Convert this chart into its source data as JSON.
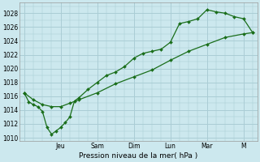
{
  "xlabel": "Pression niveau de la mer( hPa )",
  "ylim": [
    1009.5,
    1029.5
  ],
  "yticks": [
    1010,
    1012,
    1014,
    1016,
    1018,
    1020,
    1022,
    1024,
    1026,
    1028
  ],
  "bg_color": "#cce8ee",
  "grid_color": "#aacdd5",
  "line_color": "#1a6e1a",
  "day_positions": [
    0,
    4,
    8,
    12,
    16,
    20,
    24
  ],
  "day_labels": [
    "",
    "Jeu",
    "Sam",
    "Dim",
    "Lun",
    "Mar",
    "M"
  ],
  "xlim": [
    -0.5,
    25.5
  ],
  "line1_x": [
    0,
    0.5,
    1,
    1.5,
    2,
    2.5,
    3,
    3.5,
    4,
    4.5,
    5,
    5.5,
    6,
    7,
    8,
    9,
    10,
    11,
    12,
    13,
    14,
    15,
    16,
    17,
    18,
    19,
    20,
    21,
    22,
    23,
    24,
    25
  ],
  "line1_y": [
    1016.5,
    1015.2,
    1014.8,
    1014.5,
    1013.8,
    1011.5,
    1010.5,
    1011.0,
    1011.5,
    1012.2,
    1013.0,
    1015.3,
    1015.8,
    1017.0,
    1018.0,
    1019.0,
    1019.5,
    1020.3,
    1021.5,
    1022.2,
    1022.5,
    1022.8,
    1023.8,
    1026.5,
    1026.8,
    1027.2,
    1028.5,
    1028.2,
    1028.0,
    1027.5,
    1027.2,
    1025.2
  ],
  "line2_x": [
    0,
    1,
    2,
    3,
    4,
    5,
    6,
    8,
    10,
    12,
    14,
    16,
    18,
    20,
    22,
    24,
    25
  ],
  "line2_y": [
    1016.5,
    1015.5,
    1014.8,
    1014.5,
    1014.5,
    1015.0,
    1015.5,
    1016.5,
    1017.8,
    1018.8,
    1019.8,
    1021.2,
    1022.5,
    1023.5,
    1024.5,
    1025.0,
    1025.2
  ]
}
